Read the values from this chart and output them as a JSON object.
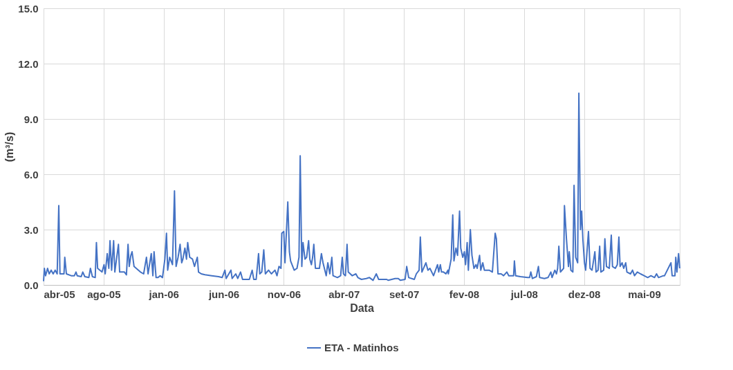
{
  "chart_data": {
    "type": "line",
    "xlabel": "Data",
    "ylabel": "(m³/s)",
    "xlim": [
      "2005-04-01",
      "2009-08-07"
    ],
    "xticks": [
      {
        "value": "2005-04-01",
        "label": "abr-05"
      },
      {
        "value": "2005-08-29",
        "label": "ago-05"
      },
      {
        "value": "2006-01-26",
        "label": "jan-06"
      },
      {
        "value": "2006-06-25",
        "label": "jun-06"
      },
      {
        "value": "2006-11-22",
        "label": "nov-06"
      },
      {
        "value": "2007-04-21",
        "label": "abr-07"
      },
      {
        "value": "2007-09-18",
        "label": "set-07"
      },
      {
        "value": "2008-02-15",
        "label": "fev-08"
      },
      {
        "value": "2008-07-14",
        "label": "jul-08"
      },
      {
        "value": "2008-12-11",
        "label": "dez-08"
      },
      {
        "value": "2009-05-10",
        "label": "mai-09"
      }
    ],
    "ylim": [
      0,
      15
    ],
    "yticks": [
      {
        "value": 0,
        "label": "0.0"
      },
      {
        "value": 3,
        "label": "3.0"
      },
      {
        "value": 6,
        "label": "6.0"
      },
      {
        "value": 9,
        "label": "9.0"
      },
      {
        "value": 12,
        "label": "12.0"
      },
      {
        "value": 15,
        "label": "15.0"
      }
    ],
    "grid": true,
    "legend": "bottom",
    "series": [
      {
        "name": "ETA - Matinhos",
        "color": "#4472c4",
        "x": [
          "2005-04-01",
          "2005-04-03",
          "2005-04-06",
          "2005-04-11",
          "2005-04-15",
          "2005-04-20",
          "2005-04-25",
          "2005-04-30",
          "2005-05-05",
          "2005-05-09",
          "2005-05-12",
          "2005-05-22",
          "2005-05-24",
          "2005-05-28",
          "2005-06-09",
          "2005-06-17",
          "2005-06-21",
          "2005-06-24",
          "2005-07-04",
          "2005-07-08",
          "2005-07-13",
          "2005-07-23",
          "2005-07-27",
          "2005-08-01",
          "2005-08-08",
          "2005-08-11",
          "2005-08-14",
          "2005-08-25",
          "2005-08-30",
          "2005-09-02",
          "2005-09-07",
          "2005-09-11",
          "2005-09-14",
          "2005-09-18",
          "2005-09-23",
          "2005-09-26",
          "2005-10-05",
          "2005-10-08",
          "2005-10-20",
          "2005-10-25",
          "2005-10-29",
          "2005-11-01",
          "2005-11-05",
          "2005-11-08",
          "2005-11-13",
          "2005-11-24",
          "2005-11-29",
          "2005-12-07",
          "2005-12-14",
          "2005-12-18",
          "2005-12-26",
          "2005-12-30",
          "2006-01-02",
          "2006-01-07",
          "2006-01-12",
          "2006-01-17",
          "2006-01-23",
          "2006-01-29",
          "2006-02-02",
          "2006-02-05",
          "2006-02-10",
          "2006-02-17",
          "2006-02-22",
          "2006-02-26",
          "2006-03-03",
          "2006-03-08",
          "2006-03-12",
          "2006-03-15",
          "2006-03-20",
          "2006-03-24",
          "2006-03-27",
          "2006-04-01",
          "2006-04-08",
          "2006-04-13",
          "2006-04-20",
          "2006-04-23",
          "2006-04-30",
          "2006-05-09",
          "2006-05-26",
          "2006-06-12",
          "2006-06-21",
          "2006-06-28",
          "2006-07-01",
          "2006-07-13",
          "2006-07-16",
          "2006-07-25",
          "2006-07-30",
          "2006-08-06",
          "2006-08-11",
          "2006-08-28",
          "2006-09-04",
          "2006-09-08",
          "2006-09-14",
          "2006-09-20",
          "2006-09-23",
          "2006-09-28",
          "2006-10-03",
          "2006-10-07",
          "2006-10-15",
          "2006-10-22",
          "2006-10-31",
          "2006-11-05",
          "2006-11-10",
          "2006-11-15",
          "2006-11-17",
          "2006-11-22",
          "2006-11-25",
          "2006-12-02",
          "2006-12-06",
          "2006-12-09",
          "2006-12-18",
          "2006-12-25",
          "2006-12-30",
          "2007-01-02",
          "2007-01-06",
          "2007-01-09",
          "2007-01-14",
          "2007-01-18",
          "2007-01-23",
          "2007-01-26",
          "2007-01-30",
          "2007-02-02",
          "2007-02-05",
          "2007-02-09",
          "2007-02-19",
          "2007-02-24",
          "2007-02-28",
          "2007-03-08",
          "2007-03-12",
          "2007-03-17",
          "2007-03-22",
          "2007-03-25",
          "2007-04-05",
          "2007-04-13",
          "2007-04-17",
          "2007-04-20",
          "2007-04-25",
          "2007-04-29",
          "2007-05-02",
          "2007-05-12",
          "2007-05-21",
          "2007-05-26",
          "2007-06-04",
          "2007-06-16",
          "2007-06-24",
          "2007-07-03",
          "2007-07-11",
          "2007-07-17",
          "2007-08-01",
          "2007-08-06",
          "2007-08-10",
          "2007-08-27",
          "2007-09-04",
          "2007-09-09",
          "2007-09-21",
          "2007-09-25",
          "2007-09-30",
          "2007-10-14",
          "2007-10-19",
          "2007-10-26",
          "2007-10-29",
          "2007-11-02",
          "2007-11-08",
          "2007-11-12",
          "2007-11-17",
          "2007-11-22",
          "2007-12-01",
          "2007-12-11",
          "2007-12-14",
          "2007-12-18",
          "2007-12-21",
          "2007-12-26",
          "2008-01-01",
          "2008-01-06",
          "2008-01-07",
          "2008-01-14",
          "2008-01-18",
          "2008-01-21",
          "2008-01-26",
          "2008-01-30",
          "2008-02-04",
          "2008-02-07",
          "2008-02-12",
          "2008-02-16",
          "2008-02-19",
          "2008-02-23",
          "2008-02-26",
          "2008-03-02",
          "2008-03-06",
          "2008-03-11",
          "2008-03-16",
          "2008-03-19",
          "2008-03-25",
          "2008-03-28",
          "2008-04-02",
          "2008-04-06",
          "2008-04-18",
          "2008-04-26",
          "2008-05-03",
          "2008-05-06",
          "2008-05-10",
          "2008-05-18",
          "2008-05-24",
          "2008-06-01",
          "2008-06-06",
          "2008-06-18",
          "2008-06-20",
          "2008-06-23",
          "2008-07-05",
          "2008-07-23",
          "2008-07-28",
          "2008-07-31",
          "2008-08-04",
          "2008-08-14",
          "2008-08-17",
          "2008-08-19",
          "2008-08-22",
          "2008-09-03",
          "2008-09-12",
          "2008-09-19",
          "2008-09-22",
          "2008-09-29",
          "2008-10-03",
          "2008-10-06",
          "2008-10-09",
          "2008-10-13",
          "2008-10-21",
          "2008-10-23",
          "2008-10-28",
          "2008-11-02",
          "2008-11-04",
          "2008-11-08",
          "2008-11-13",
          "2008-11-16",
          "2008-11-20",
          "2008-11-25",
          "2008-11-28",
          "2008-12-02",
          "2008-12-05",
          "2008-12-08",
          "2008-12-12",
          "2008-12-15",
          "2008-12-22",
          "2008-12-26",
          "2008-12-31",
          "2009-01-07",
          "2009-01-10",
          "2009-01-15",
          "2009-01-19",
          "2009-01-22",
          "2009-01-29",
          "2009-02-01",
          "2009-02-05",
          "2009-02-12",
          "2009-02-17",
          "2009-02-20",
          "2009-02-27",
          "2009-03-04",
          "2009-03-08",
          "2009-03-11",
          "2009-03-16",
          "2009-03-20",
          "2009-03-25",
          "2009-03-28",
          "2009-04-06",
          "2009-04-11",
          "2009-04-16",
          "2009-04-23",
          "2009-05-01",
          "2009-05-10",
          "2009-05-19",
          "2009-05-27",
          "2009-06-05",
          "2009-06-10",
          "2009-06-15",
          "2009-06-27",
          "2009-06-30",
          "2009-07-16",
          "2009-07-19",
          "2009-07-26",
          "2009-07-28",
          "2009-07-31",
          "2009-08-04",
          "2009-08-07"
        ],
        "values": [
          0.2,
          0.9,
          0.5,
          0.9,
          0.6,
          0.8,
          0.6,
          0.8,
          0.6,
          4.3,
          0.6,
          0.6,
          1.5,
          0.6,
          0.5,
          0.5,
          0.7,
          0.5,
          0.45,
          0.7,
          0.45,
          0.4,
          0.9,
          0.45,
          0.4,
          2.3,
          0.9,
          0.7,
          1.1,
          0.6,
          1.7,
          0.9,
          2.4,
          0.8,
          2.4,
          0.7,
          2.2,
          0.7,
          0.7,
          0.55,
          2.2,
          1.0,
          1.6,
          1.8,
          1.0,
          0.8,
          0.7,
          0.6,
          1.5,
          0.6,
          1.7,
          0.5,
          1.8,
          0.4,
          0.4,
          0.5,
          0.4,
          1.4,
          2.8,
          0.8,
          1.5,
          1.1,
          5.1,
          1.0,
          1.5,
          2.2,
          1.2,
          1.4,
          2.0,
          1.4,
          2.3,
          1.5,
          1.4,
          1.0,
          1.5,
          0.7,
          0.6,
          0.55,
          0.5,
          0.45,
          0.4,
          0.8,
          0.35,
          0.8,
          0.35,
          0.6,
          0.35,
          0.7,
          0.3,
          0.3,
          0.8,
          0.3,
          0.3,
          1.7,
          0.6,
          0.7,
          1.9,
          0.6,
          0.8,
          0.6,
          0.8,
          0.5,
          1.0,
          0.9,
          2.8,
          2.9,
          1.2,
          4.5,
          1.8,
          1.3,
          0.8,
          0.9,
          1.5,
          7.0,
          1.0,
          2.3,
          1.4,
          1.5,
          2.4,
          1.4,
          1.1,
          1.5,
          2.2,
          0.9,
          0.9,
          1.7,
          1.2,
          0.5,
          1.2,
          0.6,
          1.5,
          0.5,
          0.4,
          0.5,
          1.5,
          0.6,
          0.5,
          2.2,
          0.7,
          0.5,
          0.6,
          0.4,
          0.3,
          0.35,
          0.4,
          0.25,
          0.6,
          0.3,
          0.3,
          0.3,
          0.25,
          0.35,
          0.35,
          0.25,
          0.3,
          1.0,
          0.4,
          0.3,
          0.6,
          0.8,
          2.6,
          0.7,
          1.0,
          1.2,
          0.8,
          0.9,
          0.5,
          1.1,
          0.7,
          1.1,
          0.7,
          0.7,
          0.6,
          0.8,
          0.6,
          1.4,
          3.8,
          1.3,
          2.0,
          1.6,
          4.0,
          2.0,
          1.5,
          1.8,
          1.1,
          2.3,
          0.8,
          3.0,
          1.6,
          0.9,
          1.1,
          0.9,
          1.6,
          0.8,
          1.2,
          0.8,
          0.8,
          0.7,
          2.8,
          2.5,
          0.6,
          0.6,
          0.5,
          0.7,
          0.5,
          0.5,
          1.3,
          0.5,
          0.45,
          0.4,
          0.4,
          0.7,
          0.35,
          0.45,
          0.8,
          1.0,
          0.4,
          0.35,
          0.4,
          0.7,
          0.4,
          0.8,
          0.6,
          0.9,
          2.1,
          0.7,
          0.9,
          4.3,
          2.5,
          1.0,
          1.8,
          0.8,
          0.7,
          5.4,
          1.5,
          1.2,
          10.4,
          3.0,
          4.0,
          2.5,
          1.2,
          0.8,
          2.9,
          0.9,
          0.8,
          1.8,
          0.7,
          0.8,
          2.1,
          0.7,
          0.8,
          2.5,
          1.0,
          0.9,
          2.7,
          1.0,
          0.9,
          1.1,
          2.6,
          1.0,
          1.2,
          0.9,
          1.2,
          0.7,
          0.6,
          0.8,
          0.5,
          0.7,
          0.6,
          0.5,
          0.4,
          0.5,
          0.4,
          0.6,
          0.4,
          0.5,
          0.5,
          1.2,
          0.5,
          0.5,
          1.5,
          0.7,
          1.7,
          0.9
        ]
      }
    ]
  }
}
